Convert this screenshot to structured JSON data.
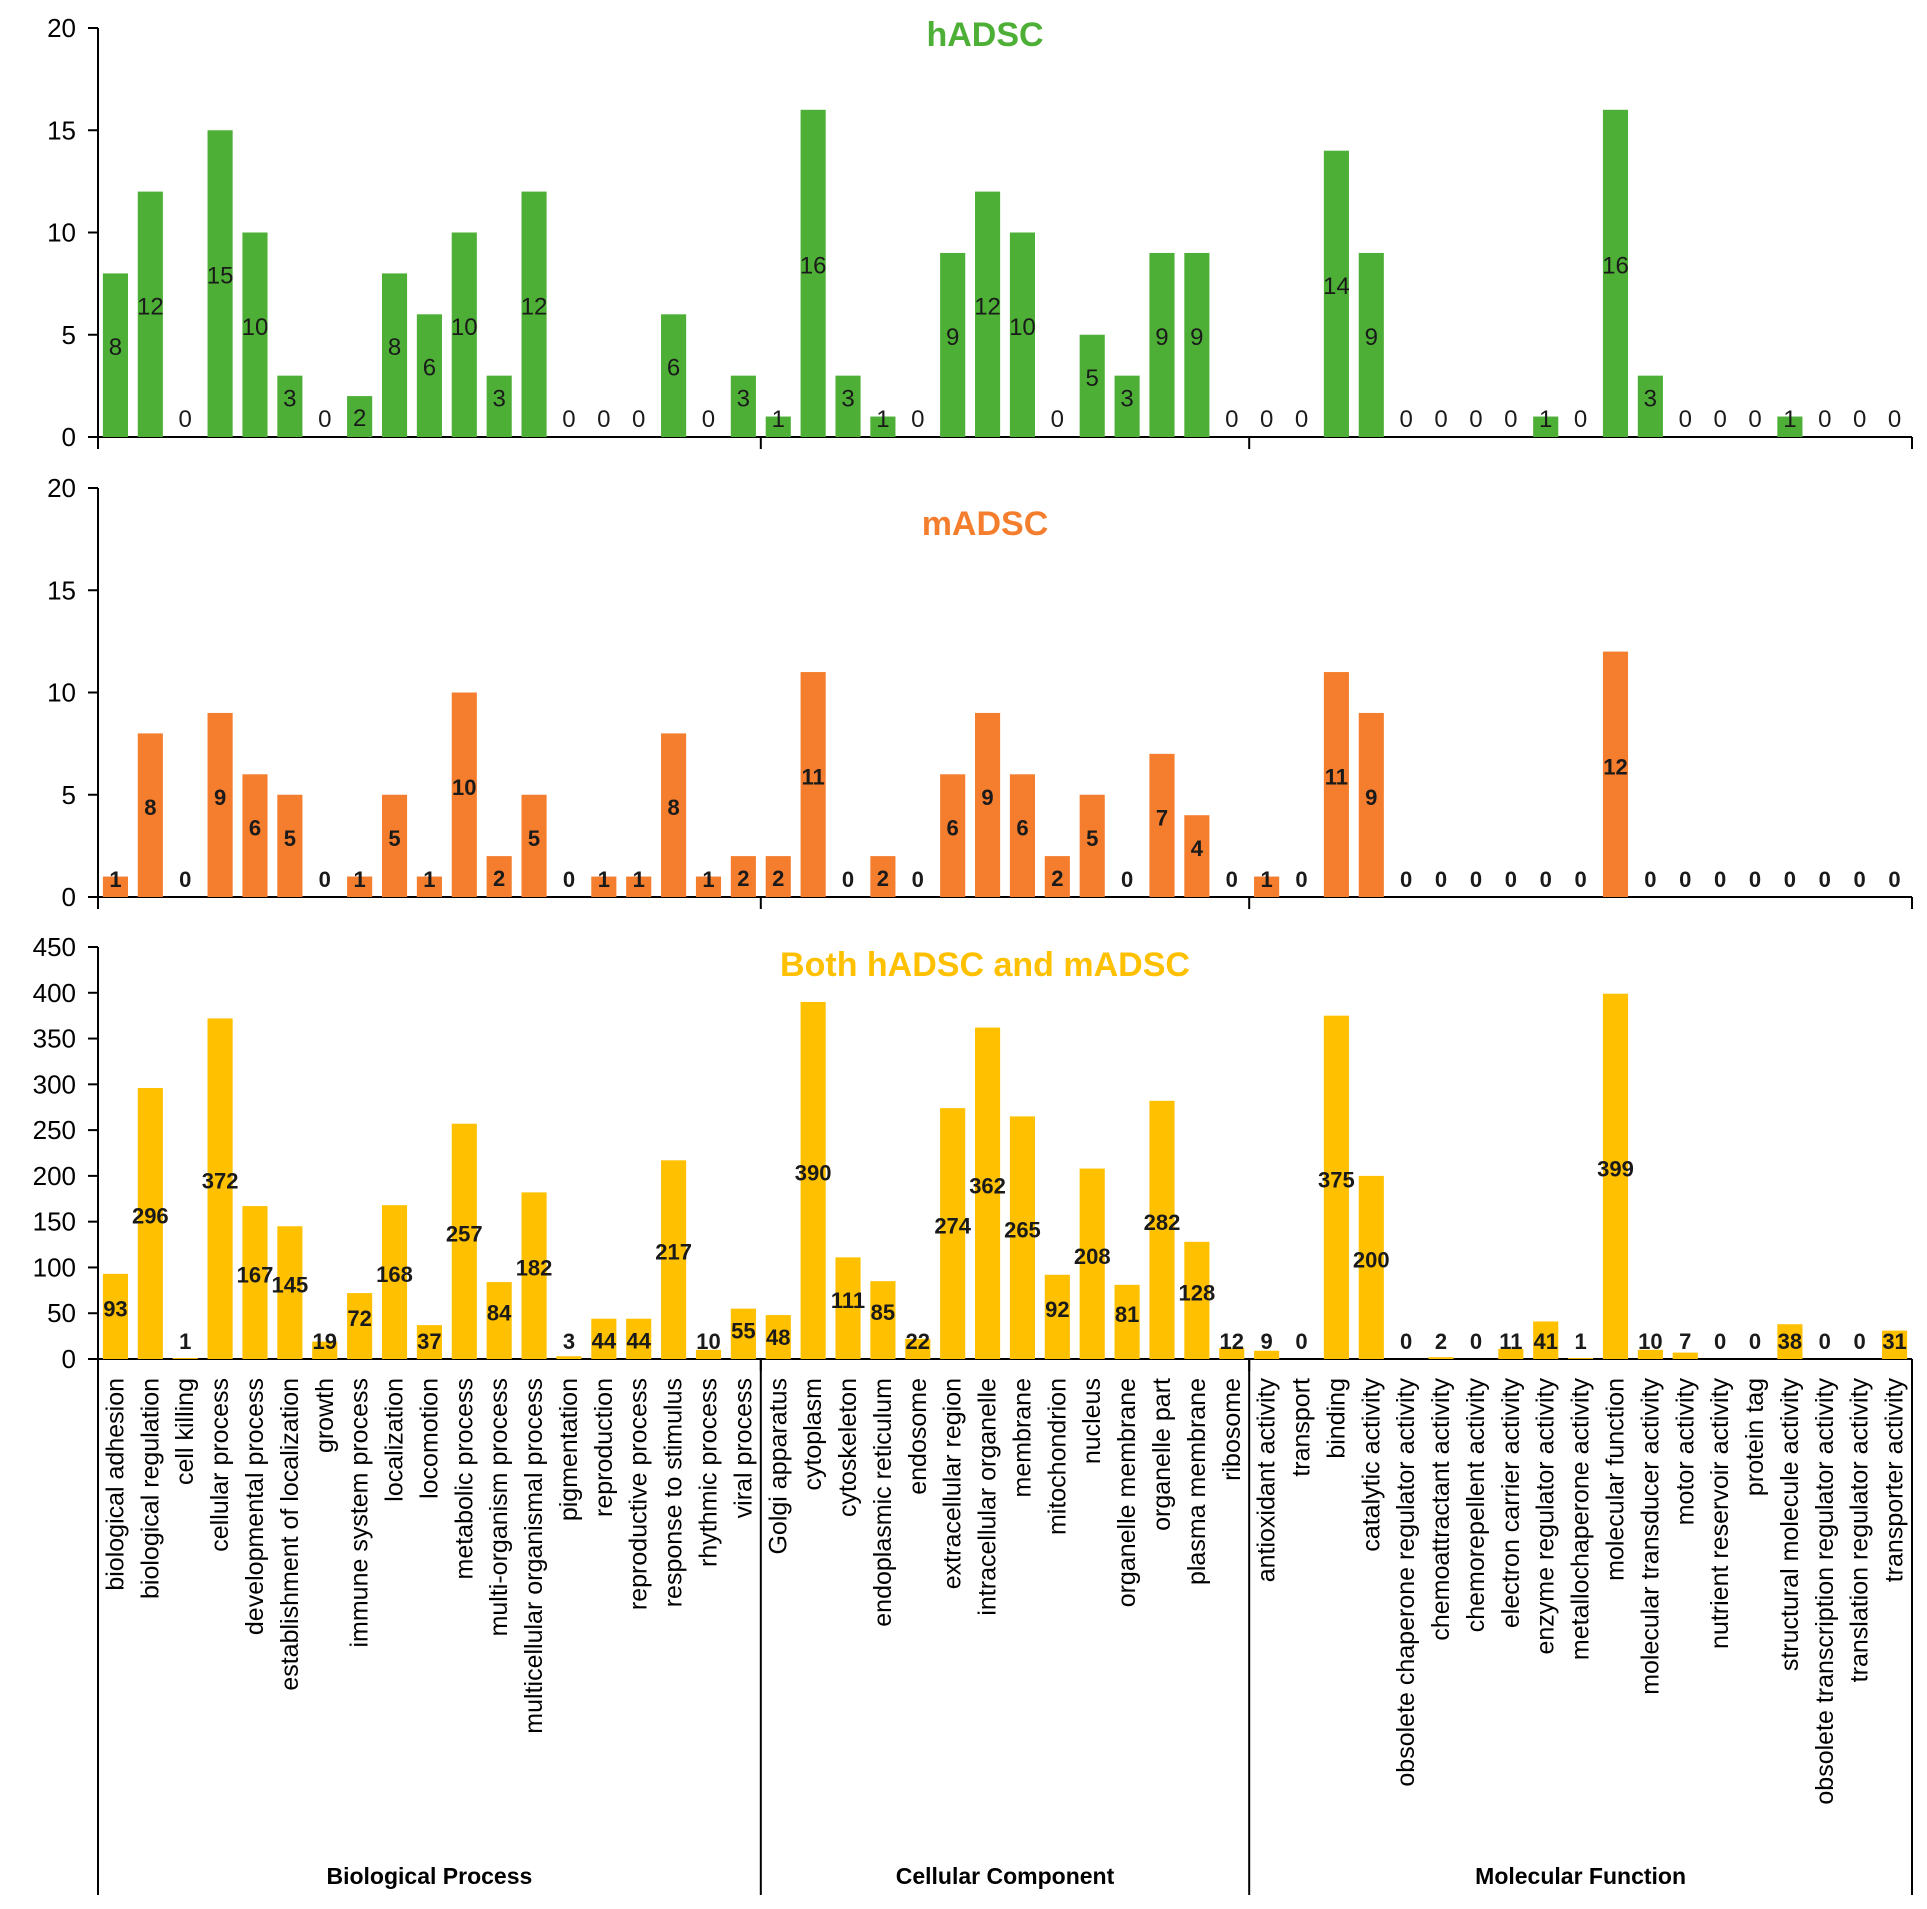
{
  "chart_data": {
    "type": "bar",
    "categories": [
      "biological adhesion",
      "biological regulation",
      "cell killing",
      "cellular process",
      "developmental process",
      "establishment of localization",
      "growth",
      "immune system process",
      "localization",
      "locomotion",
      "metabolic process",
      "multi-organism process",
      "multicellular organismal process",
      "pigmentation",
      "reproduction",
      "reproductive process",
      "response to stimulus",
      "rhythmic process",
      "viral process",
      "Golgi apparatus",
      "cytoplasm",
      "cytoskeleton",
      "endoplasmic reticulum",
      "endosome",
      "extracellular region",
      "intracellular organelle",
      "membrane",
      "mitochondrion",
      "nucleus",
      "organelle membrane",
      "organelle part",
      "plasma membrane",
      "ribosome",
      "antioxidant activity",
      "transport",
      "binding",
      "catalytic activity",
      "obsolete chaperone regulator activity",
      "chemoattractant activity",
      "chemorepellent activity",
      "electron carrier activity",
      "enzyme regulator activity",
      "metallochaperone activity",
      "molecular function",
      "molecular transducer activity",
      "motor activity",
      "nutrient reservoir activity",
      "protein tag",
      "structural molecule activity",
      "obsolete transcription regulator activity",
      "translation regulator activity",
      "transporter activity"
    ],
    "groups": [
      {
        "name": "Biological Process",
        "count": 19
      },
      {
        "name": "Cellular Component",
        "count": 14
      },
      {
        "name": "Molecular Function",
        "count": 19
      }
    ],
    "series": [
      {
        "name": "hADSC",
        "title": "hADSC",
        "color": "#4daf36",
        "ylim": [
          0,
          20
        ],
        "yticks": [
          "0",
          "5",
          "10",
          "15",
          "20"
        ],
        "values": [
          8,
          12,
          0,
          15,
          10,
          3,
          0,
          2,
          8,
          6,
          10,
          3,
          12,
          0,
          0,
          0,
          6,
          0,
          3,
          1,
          16,
          3,
          1,
          0,
          9,
          12,
          10,
          0,
          5,
          3,
          9,
          9,
          0,
          0,
          0,
          14,
          9,
          0,
          0,
          0,
          0,
          1,
          0,
          16,
          3,
          0,
          0,
          0,
          1,
          0,
          0,
          0
        ],
        "labels": [
          "8",
          "12",
          "0",
          "15",
          "10",
          "3",
          "0",
          "2",
          "8",
          "6",
          "10",
          "3",
          "12",
          "0",
          "0",
          "0",
          "6",
          "0",
          "3",
          "1",
          "16",
          "3",
          "1",
          "0",
          "9",
          "12",
          "10",
          "0",
          "5",
          "3",
          "9",
          "9",
          "0",
          "0",
          "0",
          "14",
          "9",
          "0",
          "0",
          "0",
          "0",
          "1",
          "0",
          "16",
          "3",
          "0",
          "0",
          "0",
          "1",
          "0",
          "0",
          "0"
        ]
      },
      {
        "name": "mADSC",
        "title": "mADSC",
        "color": "#f47e2e",
        "ylim": [
          0,
          20
        ],
        "yticks": [
          "0",
          "5",
          "10",
          "15",
          "20"
        ],
        "values": [
          1,
          8,
          0,
          9,
          6,
          5,
          0,
          1,
          5,
          1,
          10,
          2,
          5,
          0,
          1,
          1,
          8,
          1,
          2,
          2,
          11,
          0,
          2,
          0,
          6,
          9,
          6,
          2,
          5,
          0,
          7,
          4,
          0,
          1,
          0,
          11,
          9,
          0,
          0,
          0,
          0,
          0,
          0,
          12,
          0,
          0,
          0,
          0,
          0,
          0,
          0,
          0
        ],
        "labels": [
          "1",
          "8",
          "0",
          "9",
          "6",
          "5",
          "0",
          "1",
          "5",
          "1",
          "10",
          "2",
          "5",
          "0",
          "1",
          "1",
          "8",
          "1",
          "2",
          "2",
          "11",
          "0",
          "2",
          "0",
          "6",
          "9",
          "6",
          "2",
          "5",
          "0",
          "7",
          "4",
          "0",
          "1",
          "0",
          "11",
          "9",
          "0",
          "0",
          "0",
          "0",
          "0",
          "0",
          "12",
          "0",
          "0",
          "0",
          "0",
          "0",
          "0",
          "0",
          "0"
        ]
      },
      {
        "name": "Both hADSC and mADSC",
        "title": "Both hADSC and mADSC",
        "color": "#ffc000",
        "ylim": [
          0,
          450
        ],
        "yticks": [
          "0",
          "50",
          "100",
          "150",
          "200",
          "250",
          "300",
          "350",
          "400",
          "450"
        ],
        "values": [
          93,
          296,
          1,
          372,
          167,
          145,
          19,
          72,
          168,
          37,
          257,
          84,
          182,
          3,
          44,
          44,
          217,
          10,
          55,
          48,
          390,
          111,
          85,
          22,
          274,
          362,
          265,
          92,
          208,
          81,
          282,
          128,
          12,
          9,
          0,
          375,
          200,
          0,
          2,
          0,
          11,
          41,
          1,
          399,
          10,
          7,
          0,
          0,
          38,
          0,
          0,
          31
        ],
        "labels": [
          "93",
          "296",
          "1",
          "372",
          "167",
          "145",
          "19",
          "72",
          "168",
          "37",
          "257",
          "84",
          "182",
          "3",
          "44",
          "44",
          "217",
          "10",
          "55",
          "48",
          "390",
          "111",
          "85",
          "22",
          "274",
          "362",
          "265",
          "92",
          "208",
          "81",
          "282",
          "128",
          "12",
          "9",
          "0",
          "375",
          "200",
          "0",
          "2",
          "0",
          "11",
          "41",
          "1",
          "399",
          "10",
          "7",
          "0",
          "0",
          "38",
          "0",
          "0",
          "31"
        ]
      }
    ],
    "xlabel": "",
    "ylabel": "",
    "grid": false,
    "legend": "none"
  }
}
